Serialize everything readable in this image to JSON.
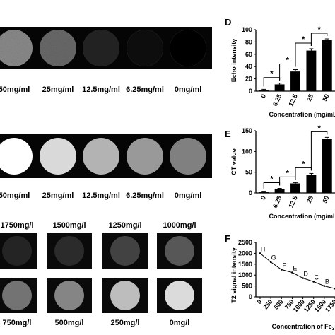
{
  "panel_a": {
    "labels": [
      "50mg/ml",
      "25mg/ml",
      "12.5mg/ml",
      "6.25mg/ml",
      "0mg/ml"
    ],
    "brightness": [
      0.55,
      0.42,
      0.14,
      0.06,
      0.0
    ]
  },
  "panel_b": {
    "labels": [
      "50mg/ml",
      "25mg/ml",
      "12.5mg/ml",
      "6.25mg/ml",
      "0mg/ml"
    ],
    "brightness": [
      1.0,
      0.85,
      0.7,
      0.6,
      0.5
    ]
  },
  "panel_c": {
    "top_labels": [
      "1750mg/l",
      "1500mg/l",
      "1250mg/l",
      "1000mg/l"
    ],
    "top_brightness": [
      0.14,
      0.17,
      0.26,
      0.34
    ],
    "bottom_labels": [
      "750mg/l",
      "500mg/l",
      "250mg/l",
      "0mg/l"
    ],
    "bottom_brightness": [
      0.45,
      0.52,
      0.74,
      0.86
    ]
  },
  "chart_data": [
    {
      "panel": "D",
      "type": "bar",
      "categories": [
        "0",
        "6.25",
        "12.5",
        "25",
        "50"
      ],
      "values": [
        2,
        11,
        32,
        66,
        83
      ],
      "errors": [
        1,
        2,
        3,
        3,
        2
      ],
      "ylabel": "Echo intensity",
      "xlabel": "Concentration (mg/mL)",
      "ylim": [
        0,
        100
      ],
      "yticks": [
        "0",
        "20",
        "40",
        "60",
        "80",
        "100"
      ],
      "significance": [
        "*",
        "*",
        "*",
        "*"
      ]
    },
    {
      "panel": "E",
      "type": "bar",
      "categories": [
        "0",
        "6.25",
        "12.5",
        "25",
        "50"
      ],
      "values": [
        3,
        10,
        23,
        44,
        130
      ],
      "errors": [
        1,
        1,
        2,
        3,
        4
      ],
      "ylabel": "CT value",
      "xlabel": "Concentration (mg/mL)",
      "ylim": [
        0,
        150
      ],
      "yticks": [
        "0",
        "50",
        "100",
        "150"
      ],
      "significance": [
        "*",
        "*",
        "*",
        "*"
      ]
    },
    {
      "panel": "F",
      "type": "line",
      "x": [
        0,
        250,
        500,
        750,
        1000,
        1250,
        1500,
        1750
      ],
      "y": [
        2000,
        1600,
        1250,
        1120,
        860,
        700,
        500,
        380
      ],
      "point_labels": [
        "H",
        "G",
        "F",
        "E",
        "D",
        "C",
        "B",
        "A"
      ],
      "ylabel": "T2 signal intensity",
      "xlabel": "Concentration of Fe3O4 (mg/l)",
      "ylim": [
        0,
        2500
      ],
      "yticks": [
        "0",
        "500",
        "1000",
        "1500",
        "2000",
        "2500"
      ],
      "xticks": [
        "0",
        "250",
        "500",
        "750",
        "1000",
        "1250",
        "1500",
        "1750"
      ]
    }
  ],
  "panel_letters": {
    "D": "D",
    "E": "E",
    "F": "F"
  }
}
